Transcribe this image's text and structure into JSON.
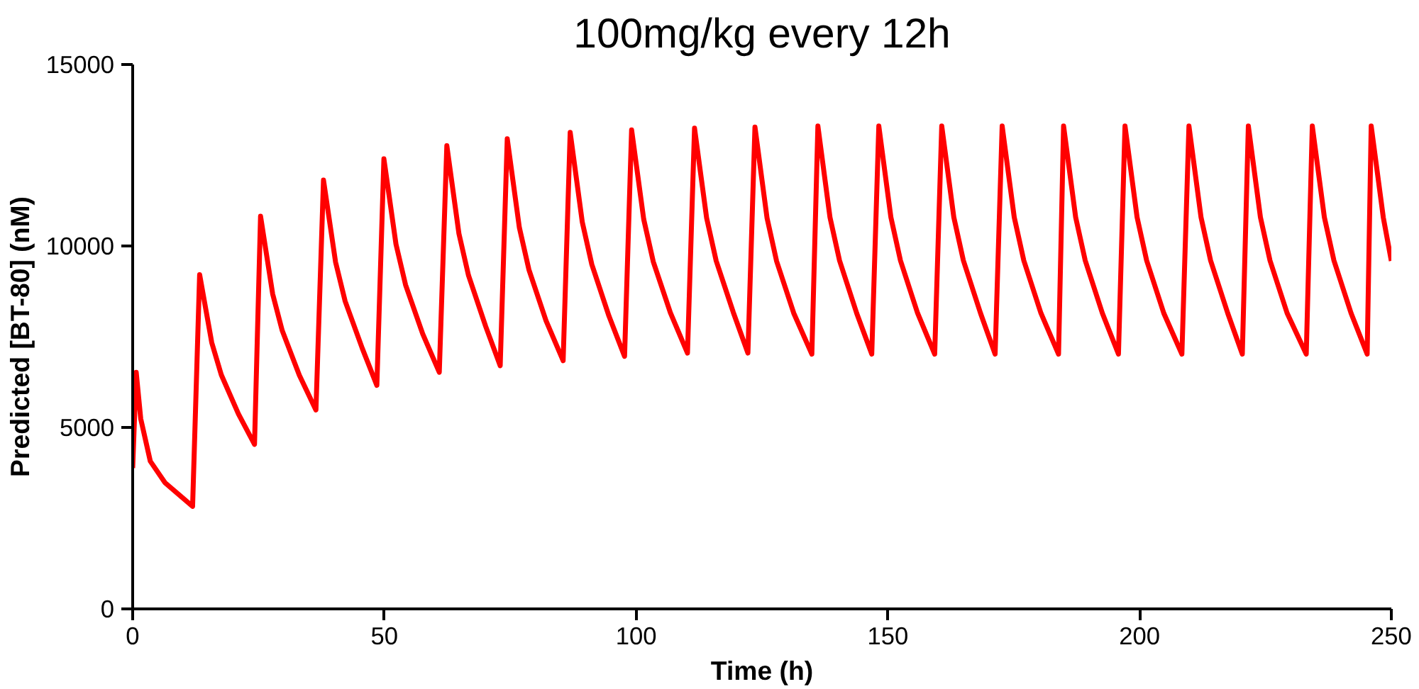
{
  "chart_data": {
    "type": "line",
    "title": "100mg/kg every 12h",
    "xlabel": "Time (h)",
    "ylabel": "Predicted [BT-80] (nM)",
    "xlim": [
      0,
      250
    ],
    "ylim": [
      0,
      15000
    ],
    "xticks": [
      0,
      50,
      100,
      150,
      200,
      250
    ],
    "yticks": [
      0,
      5000,
      10000,
      15000
    ],
    "grid": false,
    "marker": "none",
    "line_style": "solid",
    "series": [
      {
        "color": "#ff0000",
        "x": [
          0,
          0.7,
          1.6,
          3.5,
          6.4,
          11.9,
          13.3,
          15.7,
          17.6,
          21.0,
          24.2,
          25.4,
          27.8,
          29.7,
          33.1,
          36.4,
          37.9,
          40.3,
          42.2,
          45.6,
          48.5,
          49.9,
          52.3,
          54.2,
          57.6,
          60.9,
          62.4,
          64.8,
          66.7,
          70.1,
          73.0,
          74.4,
          76.8,
          78.7,
          82.1,
          85.5,
          86.9,
          89.3,
          91.2,
          94.6,
          97.7,
          99.1,
          101.5,
          103.4,
          106.8,
          110.2,
          111.6,
          114.0,
          115.9,
          119.3,
          122.2,
          123.6,
          126.0,
          127.9,
          131.3,
          134.9,
          136.1,
          138.5,
          140.4,
          143.8,
          146.8,
          148.2,
          150.6,
          152.5,
          155.9,
          159.3,
          160.7,
          163.1,
          165.0,
          168.4,
          171.3,
          172.7,
          175.1,
          177.0,
          180.4,
          183.9,
          184.9,
          187.3,
          189.2,
          192.6,
          195.8,
          197.1,
          199.5,
          201.4,
          204.8,
          208.4,
          209.8,
          212.2,
          214.1,
          217.5,
          220.4,
          221.6,
          224.0,
          225.9,
          229.3,
          233.1,
          234.3,
          236.7,
          238.6,
          242.0,
          245.2,
          246.0,
          248.4,
          250
        ],
        "values": [
          3880,
          6520,
          5240,
          4070,
          3480,
          2825,
          9210,
          7340,
          6450,
          5375,
          4535,
          10820,
          8680,
          7670,
          6440,
          5480,
          11815,
          9555,
          8480,
          7180,
          6160,
          12400,
          10050,
          8930,
          7580,
          6520,
          12765,
          10340,
          9190,
          7790,
          6700,
          12955,
          10510,
          9350,
          7940,
          6840,
          13130,
          10660,
          9490,
          8070,
          6960,
          13200,
          10740,
          9570,
          8160,
          7050,
          13245,
          10770,
          9590,
          8170,
          7050,
          13275,
          10770,
          9580,
          8150,
          7020,
          13305,
          10790,
          9600,
          8150,
          7020,
          13305,
          10790,
          9600,
          8150,
          7020,
          13305,
          10790,
          9600,
          8150,
          7020,
          13305,
          10790,
          9600,
          8150,
          7020,
          13305,
          10790,
          9600,
          8150,
          7020,
          13305,
          10790,
          9600,
          8150,
          7020,
          13305,
          10790,
          9600,
          8150,
          7020,
          13305,
          10790,
          9600,
          8150,
          7020,
          13305,
          10790,
          9600,
          8150,
          7020,
          13305,
          10790,
          9590
        ]
      }
    ]
  }
}
